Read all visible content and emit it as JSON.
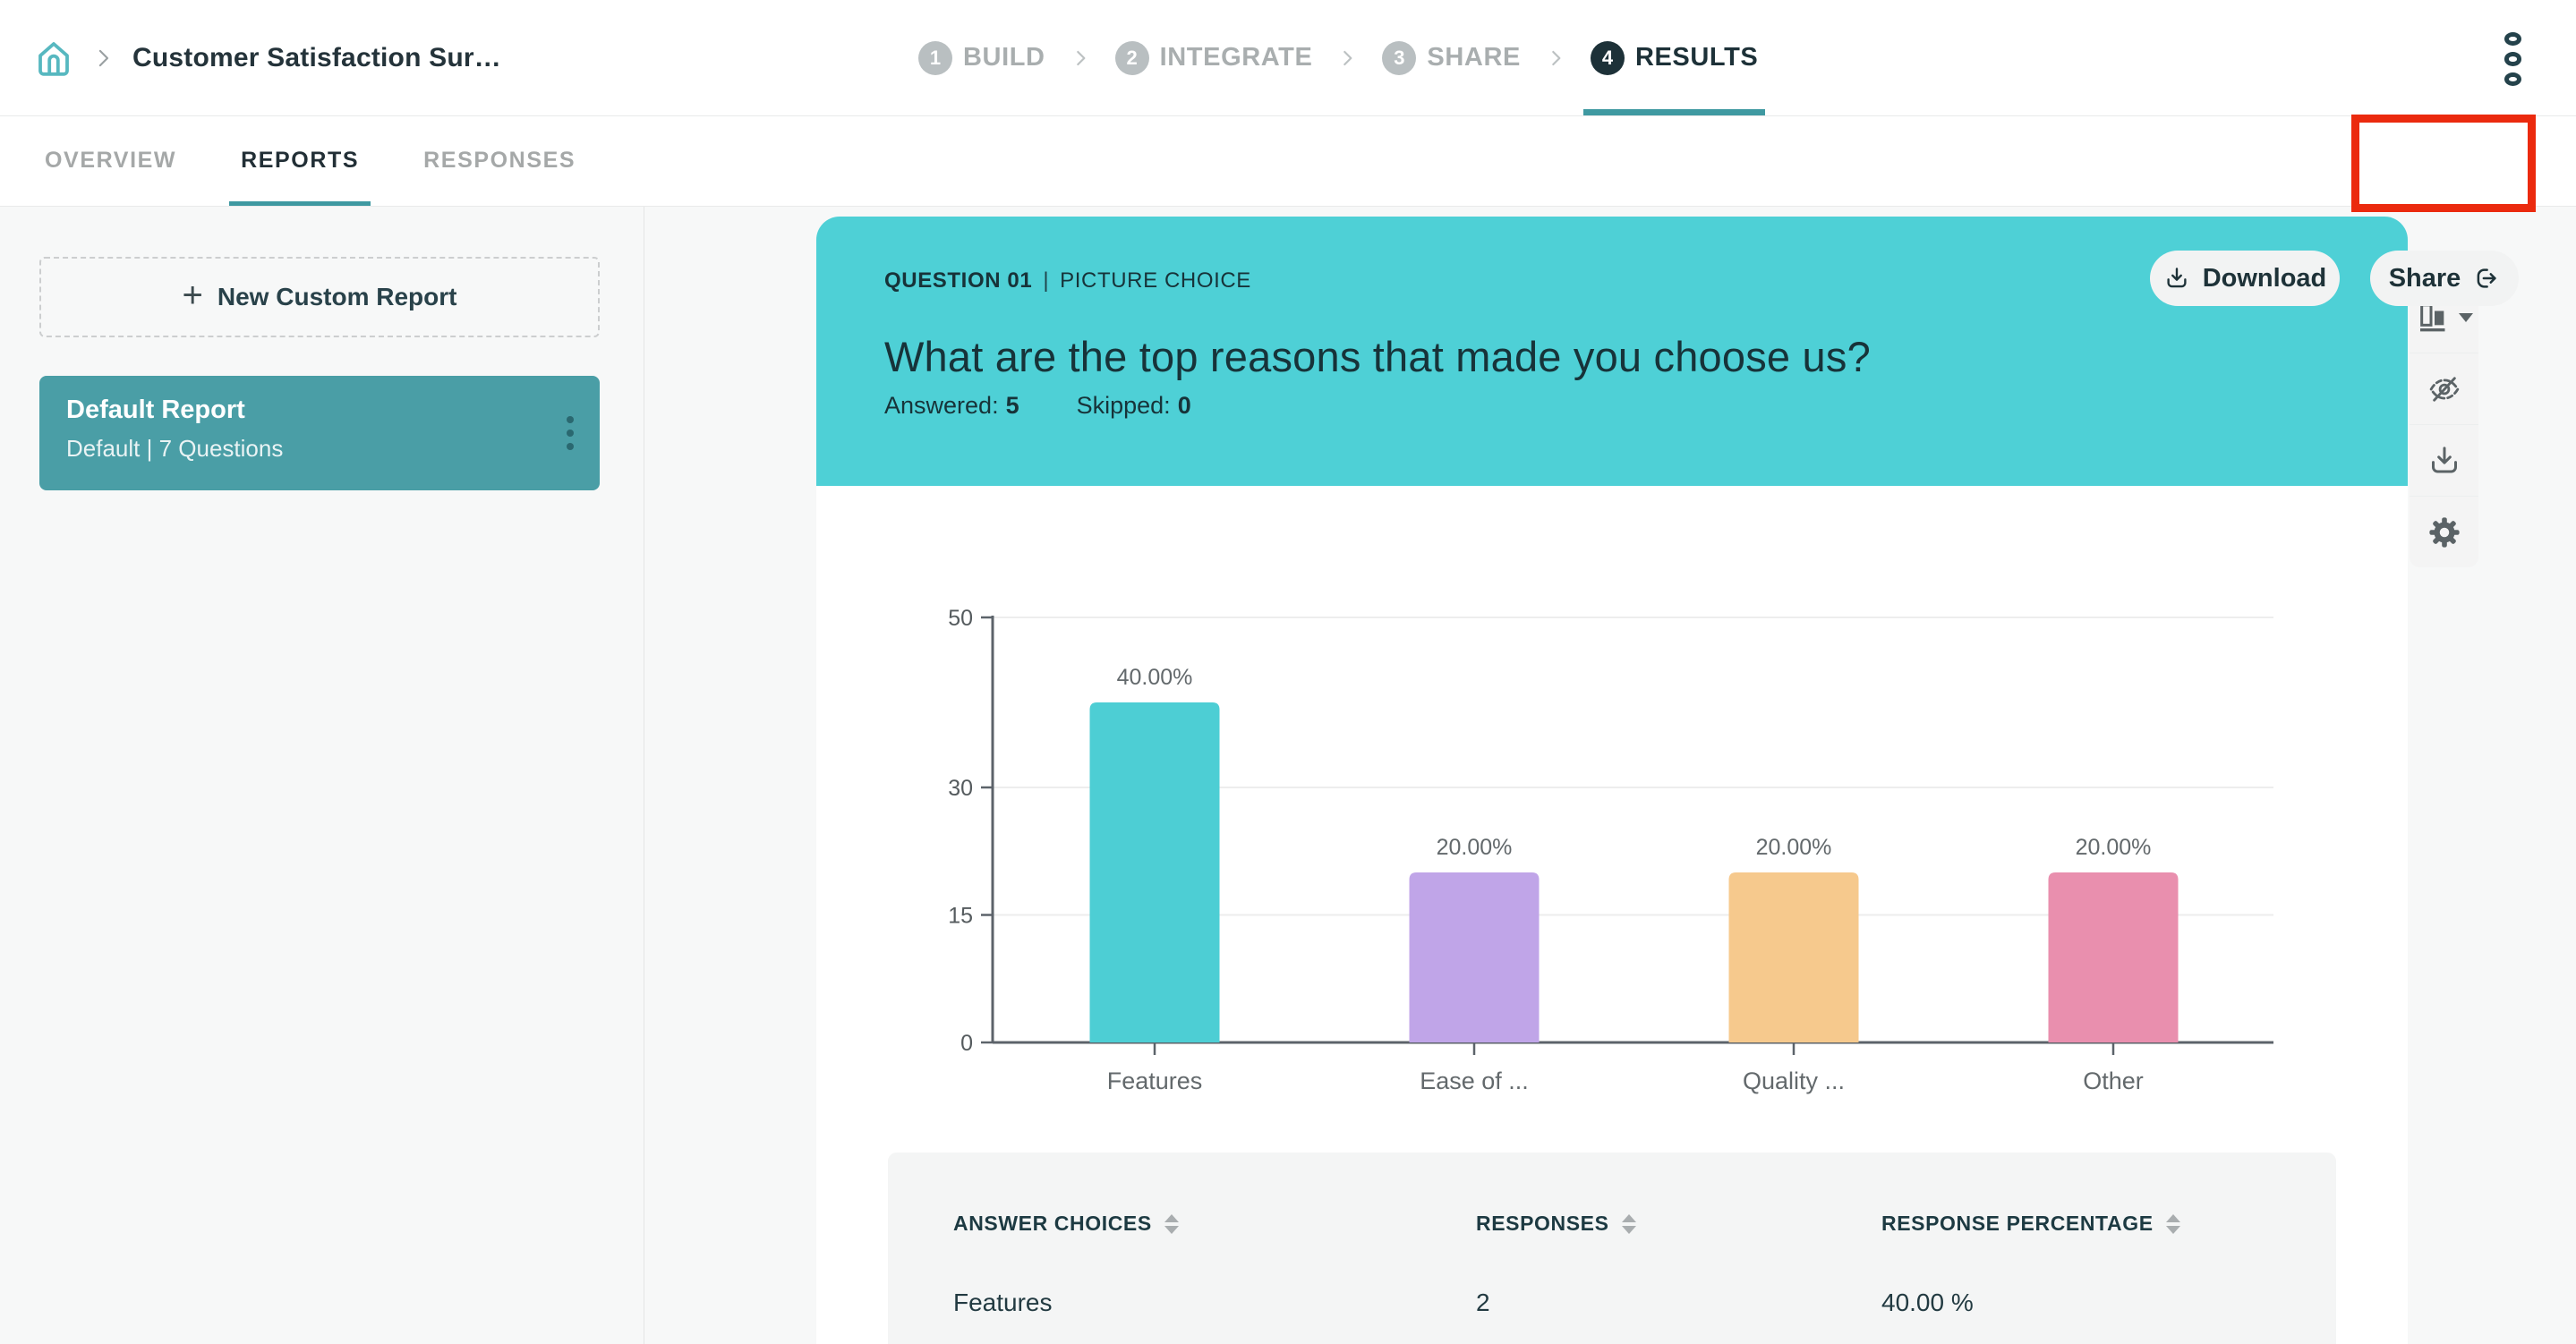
{
  "nav": {
    "breadcrumb_title": "Customer Satisfaction Sur…",
    "steps": [
      {
        "num": "1",
        "label": "BUILD"
      },
      {
        "num": "2",
        "label": "INTEGRATE"
      },
      {
        "num": "3",
        "label": "SHARE"
      },
      {
        "num": "4",
        "label": "RESULTS"
      }
    ]
  },
  "toolbar": {
    "tabs": [
      {
        "label": "OVERVIEW"
      },
      {
        "label": "REPORTS"
      },
      {
        "label": "RESPONSES"
      }
    ],
    "download_label": "Download",
    "share_label": "Share"
  },
  "sidebar": {
    "new_report_label": "New Custom Report",
    "report": {
      "title": "Default Report",
      "meta": "Default | 7 Questions"
    }
  },
  "question": {
    "number": "QUESTION 01",
    "separator": "|",
    "type": "PICTURE CHOICE",
    "title": "What are the top reasons that made you choose us?",
    "answered_label": "Answered:",
    "answered_value": "5",
    "skipped_label": "Skipped:",
    "skipped_value": "0"
  },
  "chart_data": {
    "type": "bar",
    "categories": [
      "Features",
      "Ease of ...",
      "Quality ...",
      "Other"
    ],
    "values": [
      40,
      20,
      20,
      20
    ],
    "value_labels": [
      "40.00%",
      "20.00%",
      "20.00%",
      "20.00%"
    ],
    "bar_colors": [
      "#4dced4",
      "#c0a5e8",
      "#f6c98d",
      "#e98fae"
    ],
    "yticks": [
      0,
      15,
      30,
      50
    ],
    "ylim": [
      0,
      50
    ],
    "title": "",
    "xlabel": "",
    "ylabel": "",
    "grid": "horizontal",
    "legend": "none"
  },
  "table": {
    "headers": [
      "ANSWER CHOICES",
      "RESPONSES",
      "RESPONSE PERCENTAGE"
    ],
    "rows": [
      [
        "Features",
        "2",
        "40.00 %"
      ]
    ]
  },
  "icons": {
    "home": "home-icon",
    "breadcrumb_chevron": "chevron-right-icon",
    "more_options": "kebab-menu-icon",
    "download": "download-icon",
    "share": "share-export-icon",
    "report_kebab": "kebab-menu-icon",
    "rail": [
      "chart-type-icon",
      "hide-eye-off-icon",
      "download-icon",
      "settings-gear-icon"
    ],
    "sort": "sort-arrows-icon",
    "new_report_plus": "plus-icon"
  },
  "colors": {
    "question_card_teal": "#4ed0d6",
    "sidebar_card_teal": "#4a9ea6",
    "active_underline_teal": "#3f99a1",
    "annotation_red": "#eb2a0e",
    "dark_text": "#1e3a42"
  }
}
